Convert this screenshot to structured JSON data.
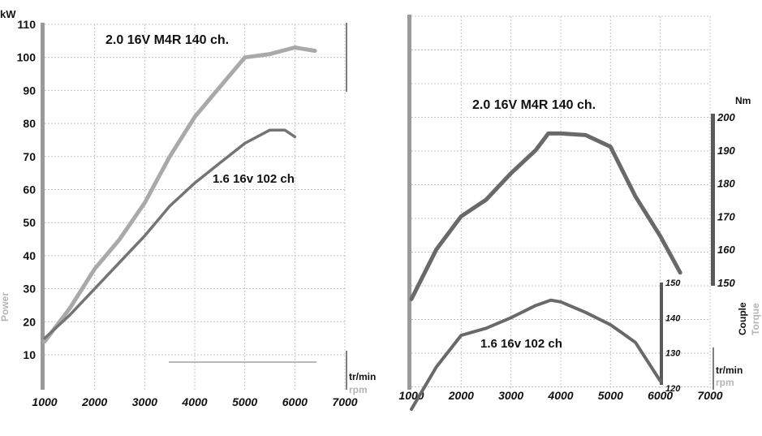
{
  "chart_data": [
    {
      "type": "line",
      "id": "power",
      "title": "2.0 16V M4R 140 ch.",
      "unit_top": "kW",
      "ylabel": "Power",
      "xlabel_primary": "tr/min",
      "xlabel_secondary": "rpm",
      "xlim": [
        1000,
        7000
      ],
      "ylim": [
        0,
        110
      ],
      "x_ticks": [
        1000,
        2000,
        3000,
        4000,
        5000,
        6000,
        7000
      ],
      "y_ticks": [
        10,
        20,
        30,
        40,
        50,
        60,
        70,
        80,
        90,
        100,
        110
      ],
      "grid": true,
      "colors": {
        "curve_140": "#a9a9a9",
        "curve_102": "#747474",
        "axis_label": "#b5b5b5"
      },
      "series": [
        {
          "name": "2.0 16V M4R 140 ch.",
          "x": [
            1000,
            1500,
            2000,
            2500,
            3000,
            3500,
            4000,
            4500,
            5000,
            5500,
            6000,
            6400
          ],
          "y": [
            14,
            24,
            36,
            45,
            56,
            70,
            82,
            91,
            100,
            101,
            103,
            102
          ]
        },
        {
          "name": "1.6 16v 102 ch",
          "x": [
            1000,
            1500,
            2000,
            2500,
            3000,
            3500,
            4000,
            4500,
            5000,
            5500,
            5800,
            6000
          ],
          "y": [
            15,
            22,
            30,
            38,
            46,
            55,
            62,
            68,
            74,
            78,
            78,
            76
          ]
        }
      ]
    },
    {
      "type": "line",
      "id": "torque",
      "unit_top": "Nm",
      "ylabel_primary": "Couple",
      "ylabel_secondary": "Torque",
      "xlabel_primary": "tr/min",
      "xlabel_secondary": "rpm",
      "xlim": [
        1000,
        7000
      ],
      "x_ticks": [
        1000,
        2000,
        3000,
        4000,
        5000,
        6000,
        7000
      ],
      "y_ticks_140": [
        150,
        160,
        170,
        180,
        190,
        200
      ],
      "y_ticks_102": [
        120,
        130,
        140,
        150
      ],
      "ylim_140": [
        150,
        200
      ],
      "ylim_102": [
        120,
        150
      ],
      "grid": true,
      "colors": {
        "curve": "#696969",
        "axis_label": "#b5b5b5"
      },
      "series": [
        {
          "name": "2.0 16V M4R 140 ch.",
          "x": [
            1000,
            1500,
            2000,
            2500,
            3000,
            3500,
            3750,
            4000,
            4500,
            5000,
            5500,
            6000,
            6400
          ],
          "y": [
            145,
            160,
            170,
            175,
            183,
            190,
            195,
            195,
            194.5,
            191,
            176,
            164,
            153
          ]
        },
        {
          "name": "1.6 16v 102 ch",
          "x": [
            1000,
            1500,
            2000,
            2500,
            3000,
            3500,
            3800,
            4000,
            4500,
            5000,
            5500,
            6000
          ],
          "y": [
            114,
            126,
            135,
            137,
            140,
            143.5,
            145,
            144.5,
            141.5,
            138,
            133,
            122
          ]
        }
      ]
    }
  ]
}
